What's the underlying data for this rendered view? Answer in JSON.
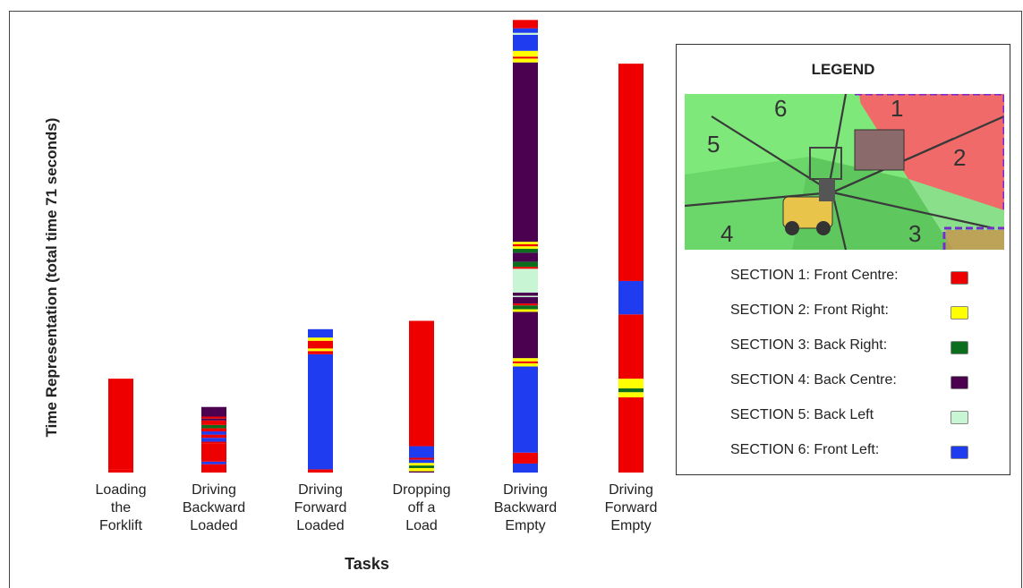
{
  "chart_data": {
    "type": "bar",
    "stacked": true,
    "ylabel": "Time Representation (total time 71 seconds)",
    "xlabel": "Tasks",
    "ylim": [
      0,
      71
    ],
    "categories": [
      "Loading the Forklift",
      "Driving Backward Loaded",
      "Driving Forward Loaded",
      "Dropping off a Load",
      "Driving Backward Empty",
      "Driving Forward Empty"
    ],
    "category_lines": [
      [
        "Loading",
        "the",
        "Forklift"
      ],
      [
        "Driving",
        "Backward",
        "Loaded"
      ],
      [
        "Driving",
        "Forward",
        "Loaded"
      ],
      [
        "Dropping",
        "off a",
        "Load"
      ],
      [
        "Driving",
        "Backward",
        "Empty"
      ],
      [
        "Driving",
        "Forward",
        "Empty"
      ]
    ],
    "segments": [
      [
        [
          1,
          0.5
        ],
        [
          1,
          14.1
        ]
      ],
      [
        [
          1,
          1.3
        ],
        [
          6,
          0.4
        ],
        [
          1,
          2.8
        ],
        [
          1,
          0.3
        ],
        [
          6,
          0.6
        ],
        [
          1,
          0.5
        ],
        [
          6,
          0.5
        ],
        [
          1,
          0.5
        ],
        [
          3,
          0.5
        ],
        [
          1,
          0.7
        ],
        [
          4,
          0.3
        ],
        [
          1,
          0.3
        ],
        [
          4,
          1.5
        ]
      ],
      [
        [
          1,
          0.5
        ],
        [
          6,
          17.9
        ],
        [
          1,
          0.5
        ],
        [
          2,
          0.4
        ],
        [
          1,
          1.2
        ],
        [
          2,
          0.5
        ],
        [
          6,
          1.3
        ]
      ],
      [
        [
          4,
          0.2
        ],
        [
          2,
          0.5
        ],
        [
          3,
          0.4
        ],
        [
          2,
          0.4
        ],
        [
          6,
          0.5
        ],
        [
          1,
          0.3
        ],
        [
          6,
          1.8
        ],
        [
          1,
          19.5
        ]
      ],
      [
        [
          6,
          1.4
        ],
        [
          1,
          1.7
        ],
        [
          6,
          13.4
        ],
        [
          2,
          0.5
        ],
        [
          1,
          0.3
        ],
        [
          2,
          0.5
        ],
        [
          4,
          7.2
        ],
        [
          2,
          0.4
        ],
        [
          3,
          0.6
        ],
        [
          1,
          0.3
        ],
        [
          4,
          1.0
        ],
        [
          5,
          0.2
        ],
        [
          4,
          0.5
        ],
        [
          5,
          3.7
        ],
        [
          1,
          0.3
        ],
        [
          3,
          0.8
        ],
        [
          4,
          1.4
        ],
        [
          3,
          0.6
        ],
        [
          2,
          0.4
        ],
        [
          1,
          0.3
        ],
        [
          2,
          0.4
        ],
        [
          4,
          27.9
        ],
        [
          2,
          0.6
        ],
        [
          1,
          0.3
        ],
        [
          2,
          0.9
        ],
        [
          6,
          2.5
        ],
        [
          5,
          0.3
        ],
        [
          6,
          0.7
        ],
        [
          1,
          1.3
        ]
      ],
      [
        [
          1,
          11.7
        ],
        [
          2,
          0.8
        ],
        [
          3,
          0.6
        ],
        [
          2,
          1.5
        ],
        [
          1,
          10.0
        ],
        [
          6,
          5.2
        ],
        [
          1,
          33.8
        ]
      ]
    ],
    "sections": [
      {
        "id": 1,
        "name": "SECTION 1: Front Centre:",
        "color": "#ee0000"
      },
      {
        "id": 2,
        "name": "SECTION 2: Front Right:",
        "color": "#ffff00"
      },
      {
        "id": 3,
        "name": "SECTION 3: Back Right:",
        "color": "#0b6e1c"
      },
      {
        "id": 4,
        "name": "SECTION 4: Back Centre:",
        "color": "#4b0050"
      },
      {
        "id": 5,
        "name": "SECTION 5: Back Left",
        "color": "#c8f5d3"
      },
      {
        "id": 6,
        "name": "SECTION 6: Front Left:",
        "color": "#1f3cf0"
      }
    ]
  },
  "legend": {
    "title": "LEGEND",
    "image_labels": [
      "1",
      "2",
      "3",
      "4",
      "5",
      "6"
    ]
  }
}
